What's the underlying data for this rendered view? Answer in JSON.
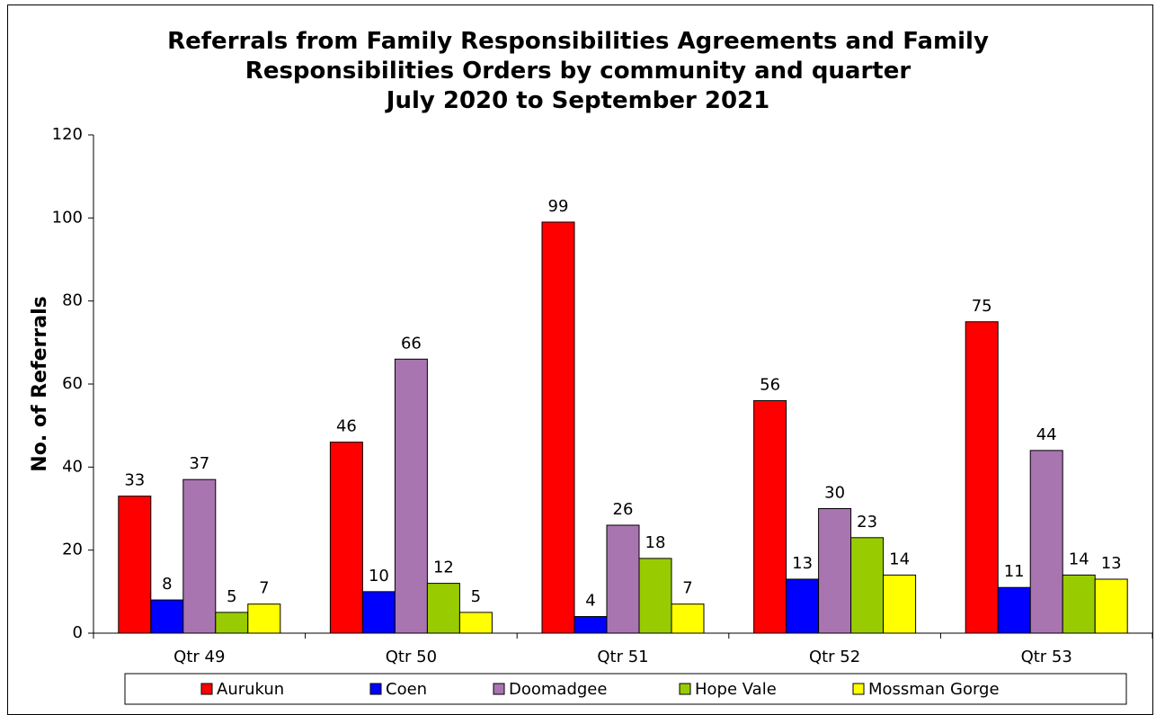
{
  "chart_data": {
    "type": "bar",
    "title": [
      "Referrals from Family Responsibilities Agreements and Family",
      "Responsibilities Orders by community and quarter",
      "July 2020 to September 2021"
    ],
    "xlabel": "",
    "ylabel": "No. of  Referrals",
    "ylim": [
      0,
      120
    ],
    "yticks": [
      0,
      20,
      40,
      60,
      80,
      100,
      120
    ],
    "categories": [
      "Qtr 49",
      "Qtr 50",
      "Qtr 51",
      "Qtr 52",
      "Qtr 53"
    ],
    "series": [
      {
        "name": "Aurukun",
        "color": "#ff0000",
        "values": [
          33,
          46,
          99,
          56,
          75
        ]
      },
      {
        "name": "Coen",
        "color": "#0000ff",
        "values": [
          8,
          10,
          4,
          13,
          11
        ]
      },
      {
        "name": "Doomadgee",
        "color": "#a875b0",
        "values": [
          37,
          66,
          26,
          30,
          44
        ]
      },
      {
        "name": "Hope Vale",
        "color": "#99cc00",
        "values": [
          5,
          12,
          18,
          23,
          14
        ]
      },
      {
        "name": "Mossman Gorge",
        "color": "#ffff00",
        "values": [
          7,
          5,
          7,
          14,
          13
        ]
      }
    ],
    "grid": false,
    "legend_position": "bottom",
    "data_labels": true
  }
}
